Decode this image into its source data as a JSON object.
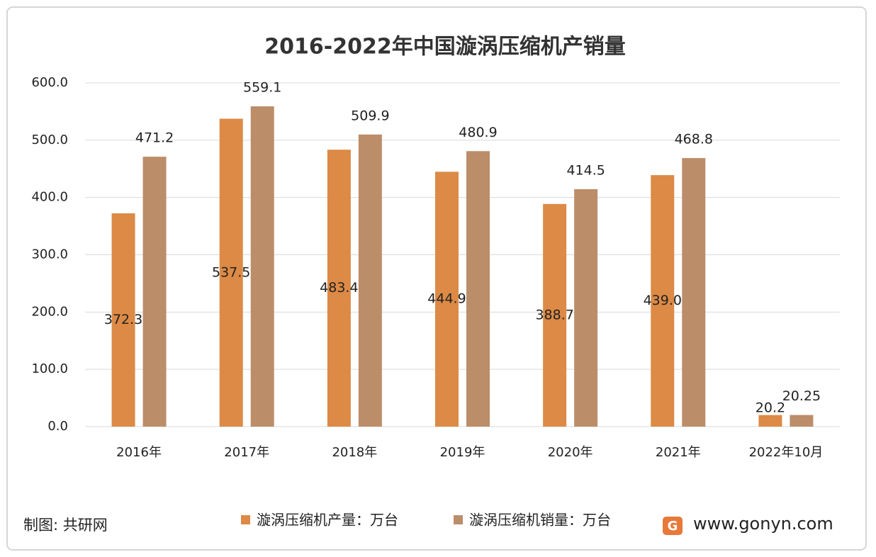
{
  "chart_data": {
    "type": "bar",
    "title": "2016-2022年中国漩涡压缩机产销量",
    "categories": [
      "2016年",
      "2017年",
      "2018年",
      "2019年",
      "2020年",
      "2021年",
      "2022年10月"
    ],
    "series": [
      {
        "name": "漩涡压缩机产量：万台",
        "color": "#dc8a45",
        "values": [
          372.3,
          537.5,
          483.4,
          444.9,
          388.7,
          439.0,
          20.2
        ],
        "value_labels": [
          "372.3",
          "537.5",
          "483.4",
          "444.9",
          "388.7",
          "439.0",
          "20.2"
        ]
      },
      {
        "name": "漩涡压缩机销量：万台",
        "color": "#bc8d69",
        "values": [
          471.2,
          559.1,
          509.9,
          480.9,
          414.5,
          468.8,
          20.25
        ],
        "value_labels": [
          "471.2",
          "559.1",
          "509.9",
          "480.9",
          "414.5",
          "468.8",
          "20.25"
        ]
      }
    ],
    "ylim": [
      0,
      600
    ],
    "yticks": [
      {
        "value": 0,
        "label": "0.0"
      },
      {
        "value": 100,
        "label": "100.0"
      },
      {
        "value": 200,
        "label": "200.0"
      },
      {
        "value": 300,
        "label": "300.0"
      },
      {
        "value": 400,
        "label": "400.0"
      },
      {
        "value": 500,
        "label": "500.0"
      },
      {
        "value": 600,
        "label": "600.0"
      }
    ],
    "grid": true,
    "source": "制图: 共研网",
    "website": "www.gonyn.com"
  }
}
